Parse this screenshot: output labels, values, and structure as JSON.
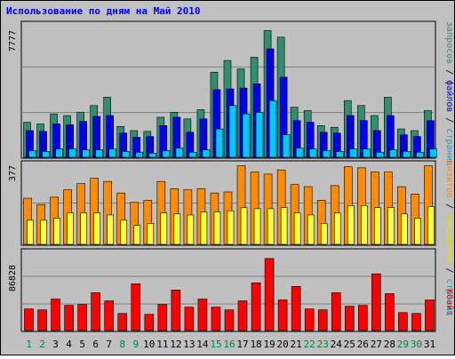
{
  "chart_data": [
    {
      "type": "bar",
      "title": "Использование по дням на Май 2010",
      "panel": "top",
      "ylabel_max": "7777",
      "categories": [
        "1",
        "2",
        "3",
        "4",
        "5",
        "6",
        "7",
        "8",
        "9",
        "10",
        "11",
        "12",
        "13",
        "14",
        "15",
        "16",
        "17",
        "18",
        "19",
        "20",
        "21",
        "22",
        "23",
        "24",
        "25",
        "26",
        "27",
        "28",
        "29",
        "30",
        "31"
      ],
      "series": [
        {
          "name": "запросов",
          "color": "#2f8f6f",
          "values": [
            2100,
            2000,
            2600,
            2500,
            2700,
            3100,
            3600,
            1850,
            1600,
            1550,
            2400,
            2700,
            2300,
            2850,
            5100,
            5800,
            5300,
            6000,
            7600,
            7200,
            3000,
            2800,
            1900,
            1800,
            3400,
            3100,
            2500,
            3600,
            1700,
            1600,
            2800
          ]
        },
        {
          "name": "файлов",
          "color": "#0000ee",
          "values": [
            1600,
            1550,
            2000,
            1950,
            2150,
            2450,
            2500,
            1450,
            1200,
            1250,
            1900,
            2400,
            1500,
            2300,
            4050,
            4100,
            4150,
            4400,
            6500,
            4800,
            2200,
            2100,
            1500,
            1450,
            2500,
            2200,
            1600,
            2500,
            1350,
            1250,
            2200
          ]
        },
        {
          "name": "страниц",
          "color": "#00c8ff",
          "values": [
            400,
            350,
            500,
            500,
            450,
            450,
            500,
            350,
            300,
            250,
            400,
            550,
            300,
            450,
            1700,
            3100,
            2600,
            2700,
            3400,
            1350,
            550,
            500,
            400,
            350,
            500,
            500,
            300,
            450,
            350,
            300,
            500
          ]
        }
      ]
    },
    {
      "type": "bar",
      "panel": "middle",
      "ylabel_max": "377",
      "categories": [
        "1",
        "2",
        "3",
        "4",
        "5",
        "6",
        "7",
        "8",
        "9",
        "10",
        "11",
        "12",
        "13",
        "14",
        "15",
        "16",
        "17",
        "18",
        "19",
        "20",
        "21",
        "22",
        "23",
        "24",
        "25",
        "26",
        "27",
        "28",
        "29",
        "30",
        "31"
      ],
      "series": [
        {
          "name": "визитов",
          "color": "#ff8c00",
          "values": [
            220,
            190,
            225,
            260,
            290,
            315,
            300,
            245,
            200,
            210,
            300,
            265,
            260,
            265,
            245,
            250,
            375,
            345,
            335,
            355,
            285,
            275,
            210,
            280,
            370,
            365,
            345,
            345,
            275,
            240,
            375
          ]
        },
        {
          "name": "посещений",
          "color": "#ffff33",
          "values": [
            115,
            115,
            125,
            150,
            150,
            150,
            140,
            115,
            90,
            100,
            150,
            145,
            140,
            155,
            155,
            160,
            175,
            170,
            170,
            175,
            150,
            140,
            100,
            150,
            185,
            185,
            175,
            175,
            145,
            125,
            180
          ]
        }
      ]
    },
    {
      "type": "bar",
      "panel": "bottom",
      "ylabel_max": "86828",
      "categories": [
        "1",
        "2",
        "3",
        "4",
        "5",
        "6",
        "7",
        "8",
        "9",
        "10",
        "11",
        "12",
        "13",
        "14",
        "15",
        "16",
        "17",
        "18",
        "19",
        "20",
        "21",
        "22",
        "23",
        "24",
        "25",
        "26",
        "27",
        "28",
        "29",
        "30",
        "31"
      ],
      "series": [
        {
          "name": "Кбайт",
          "color": "#ff0000",
          "values": [
            24000,
            23000,
            35000,
            28000,
            29000,
            42000,
            33000,
            19000,
            52000,
            18000,
            29000,
            45000,
            26000,
            35000,
            26000,
            23000,
            33000,
            53000,
            80000,
            34000,
            49000,
            24000,
            23000,
            42000,
            27000,
            28000,
            63000,
            41000,
            20000,
            19000,
            34000
          ]
        }
      ]
    }
  ],
  "legend": {
    "top": {
      "sep1": " / ",
      "sep2": " / "
    },
    "middle": {
      "sep1": " / ",
      "sep2": " / "
    }
  },
  "weekend_days": [
    "1",
    "2",
    "8",
    "9",
    "15",
    "16",
    "22",
    "23",
    "29",
    "30"
  ],
  "colors": {
    "background": "#c0c0c0",
    "panel_bg": "#c0c0c0",
    "title": "#0000ff",
    "weekday_label": "#000000",
    "weekend_label": "#00883a",
    "gridline": "#808080"
  }
}
